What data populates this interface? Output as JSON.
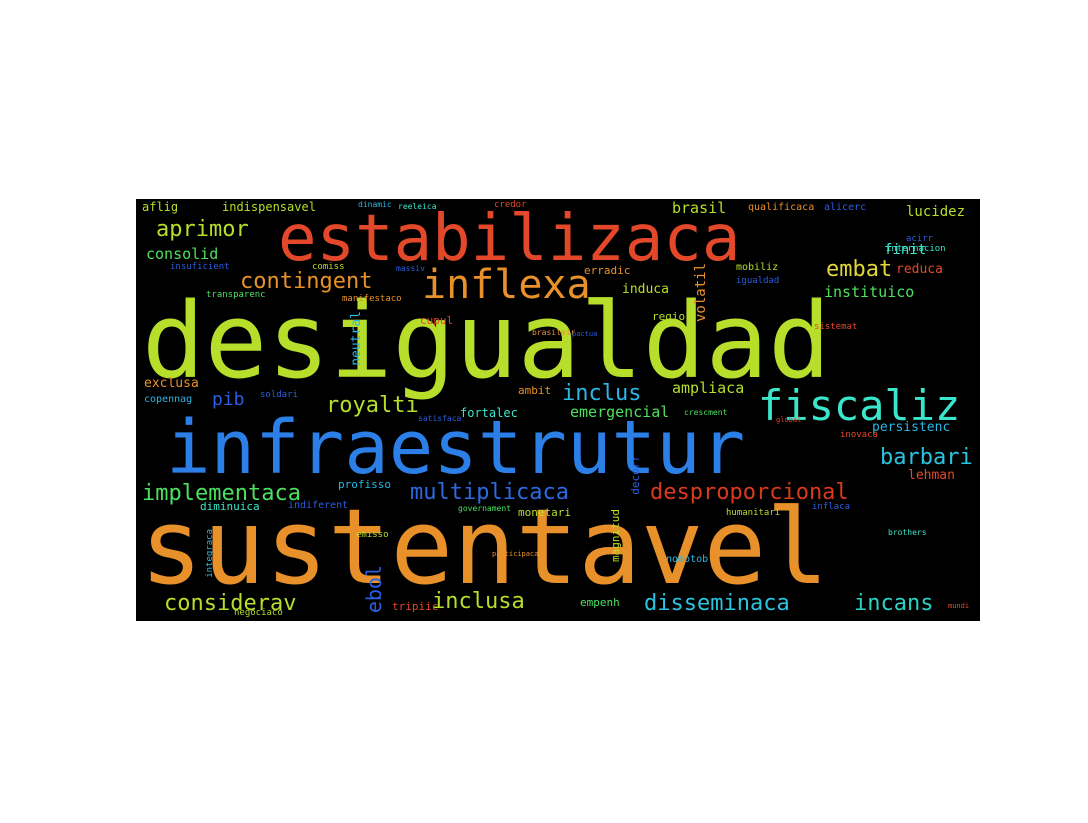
{
  "words": {
    "sustentavel": {
      "text": "sustentavel",
      "color": "#e8912a"
    },
    "desigualdad": {
      "text": "desigualdad",
      "color": "#b6de2b"
    },
    "infraestrutur": {
      "text": "infraestrutur",
      "color": "#2b7fe6"
    },
    "estabilizaca": {
      "text": "estabilizaca",
      "color": "#e3482a"
    },
    "fiscaliz": {
      "text": "fiscaliz",
      "color": "#3ae5cb"
    },
    "inflexa": {
      "text": "inflexa",
      "color": "#e8912a"
    },
    "multiplicaca": {
      "text": "multiplicaca",
      "color": "#2b6ae0"
    },
    "desproporcional": {
      "text": "desproporcional",
      "color": "#d93a1e"
    },
    "implementaca": {
      "text": "implementaca",
      "color": "#4de05e"
    },
    "consideravel": {
      "text": "considerav",
      "color": "#b6de2b"
    },
    "inclusa": {
      "text": "inclusa",
      "color": "#b6de2b"
    },
    "disseminaca": {
      "text": "disseminaca",
      "color": "#2bc4e0"
    },
    "incans": {
      "text": "incans",
      "color": "#2bd2c4"
    },
    "aprimor": {
      "text": "aprimor",
      "color": "#b6de2b"
    },
    "contingent": {
      "text": "contingent",
      "color": "#e8912a"
    },
    "royalti": {
      "text": "royalti",
      "color": "#b6de2b"
    },
    "inclus": {
      "text": "inclus",
      "color": "#2bb7e6"
    },
    "barbari": {
      "text": "barbari",
      "color": "#2bc4e0"
    },
    "embat": {
      "text": "embat",
      "color": "#e0d83a"
    },
    "pib": {
      "text": "pib",
      "color": "#2b5ee0"
    },
    "ebol": {
      "text": "ebol",
      "color": "#2b5ee0"
    },
    "consolid": {
      "text": "consolid",
      "color": "#4de05e"
    },
    "brasil": {
      "text": "brasil",
      "color": "#b6de2b"
    },
    "lucidez": {
      "text": "lucidez",
      "color": "#b6de2b"
    },
    "finit": {
      "text": "finit",
      "color": "#3ae5cb"
    },
    "reduca": {
      "text": "reduca",
      "color": "#e3482a"
    },
    "instituico": {
      "text": "instituico",
      "color": "#4de05e"
    },
    "ampliaca": {
      "text": "ampliaca",
      "color": "#b6de2b"
    },
    "emergencial": {
      "text": "emergencial",
      "color": "#4de05e"
    },
    "volatil": {
      "text": "volatil",
      "color": "#e8912a"
    },
    "persistenc": {
      "text": "persistenc",
      "color": "#2bb7e6"
    },
    "lehman": {
      "text": "lehman",
      "color": "#e3482a"
    },
    "exclusa": {
      "text": "exclusa",
      "color": "#e8912a"
    },
    "induca": {
      "text": "induca",
      "color": "#b6de2b"
    },
    "aflig": {
      "text": "aflig",
      "color": "#b6de2b"
    },
    "indispensavel": {
      "text": "indispensavel",
      "color": "#b6de2b"
    },
    "fortalec": {
      "text": "fortalec",
      "color": "#3ae5cb"
    },
    "neutral": {
      "text": "neutral",
      "color": "#2bb7e6"
    },
    "erradic": {
      "text": "erradic",
      "color": "#e8912a"
    },
    "regio": {
      "text": "regio",
      "color": "#b6de2b"
    },
    "cupul": {
      "text": "cupul",
      "color": "#e3482a"
    },
    "empenh": {
      "text": "empenh",
      "color": "#4de05e"
    },
    "tripiic": {
      "text": "tripiic",
      "color": "#e3482a"
    },
    "profisso": {
      "text": "profisso",
      "color": "#2bb7e6"
    },
    "diminuica": {
      "text": "diminuica",
      "color": "#3ae5cb"
    },
    "indiferent": {
      "text": "indiferent",
      "color": "#2b5ee0"
    },
    "monetari": {
      "text": "monetari",
      "color": "#b6de2b"
    },
    "ambit": {
      "text": "ambit",
      "color": "#e8912a"
    },
    "decorr": {
      "text": "decorr",
      "color": "#2b5ee0"
    },
    "magnitud": {
      "text": "magnitud",
      "color": "#b6de2b"
    },
    "nomotob": {
      "text": "nomotob",
      "color": "#2bb7e6"
    },
    "copennag": {
      "text": "copennag",
      "color": "#2bb7e6"
    },
    "mobiliz": {
      "text": "mobiliz",
      "color": "#b6de2b"
    },
    "igualdad": {
      "text": "igualdad",
      "color": "#2b5ee0"
    },
    "qualificaca": {
      "text": "qualificaca",
      "color": "#e8912a"
    },
    "alicerc": {
      "text": "alicerc",
      "color": "#2b5ee0"
    },
    "internacion": {
      "text": "internacion",
      "color": "#3ae5cb"
    },
    "acirr": {
      "text": "acirr",
      "color": "#2b5ee0"
    },
    "manifestaco": {
      "text": "manifestaco",
      "color": "#e8912a"
    },
    "transparenc": {
      "text": "transparenc",
      "color": "#4de05e"
    },
    "comiss": {
      "text": "comiss",
      "color": "#b6de2b"
    },
    "massiv": {
      "text": "massiv",
      "color": "#2b5ee0"
    },
    "reeleica": {
      "text": "reeleica",
      "color": "#3ae5cb"
    },
    "credor": {
      "text": "credor",
      "color": "#e3482a"
    },
    "insuficient": {
      "text": "insuficient",
      "color": "#2b5ee0"
    },
    "sistemat": {
      "text": "sistemat",
      "color": "#e3482a"
    },
    "soldari": {
      "text": "soldari",
      "color": "#2b5ee0"
    },
    "crescment": {
      "text": "crescment",
      "color": "#4de05e"
    },
    "inovaca": {
      "text": "inovaca",
      "color": "#e3482a"
    },
    "emisso": {
      "text": "emisso",
      "color": "#b6de2b"
    },
    "humanitari": {
      "text": "humanitari",
      "color": "#b6de2b"
    },
    "inflaca": {
      "text": "inflaca",
      "color": "#2b5ee0"
    },
    "governament": {
      "text": "governament",
      "color": "#4de05e"
    },
    "negociaco": {
      "text": "negociaco",
      "color": "#b6de2b"
    },
    "brasileir": {
      "text": "brasileir",
      "color": "#e8912a"
    },
    "integraca": {
      "text": "integraca",
      "color": "#2bb7e6"
    },
    "satisfaca": {
      "text": "satisfaca",
      "color": "#2b5ee0"
    },
    "global": {
      "text": "global",
      "color": "#e3482a"
    },
    "dinamic": {
      "text": "dinamic",
      "color": "#2bb7e6"
    },
    "brothers": {
      "text": "brothers",
      "color": "#3ae5cb"
    },
    "mundi": {
      "text": "mundi",
      "color": "#e3482a"
    },
    "participaca": {
      "text": "participaca",
      "color": "#e8912a"
    },
    "pactua": {
      "text": "pactua",
      "color": "#2b5ee0"
    }
  }
}
